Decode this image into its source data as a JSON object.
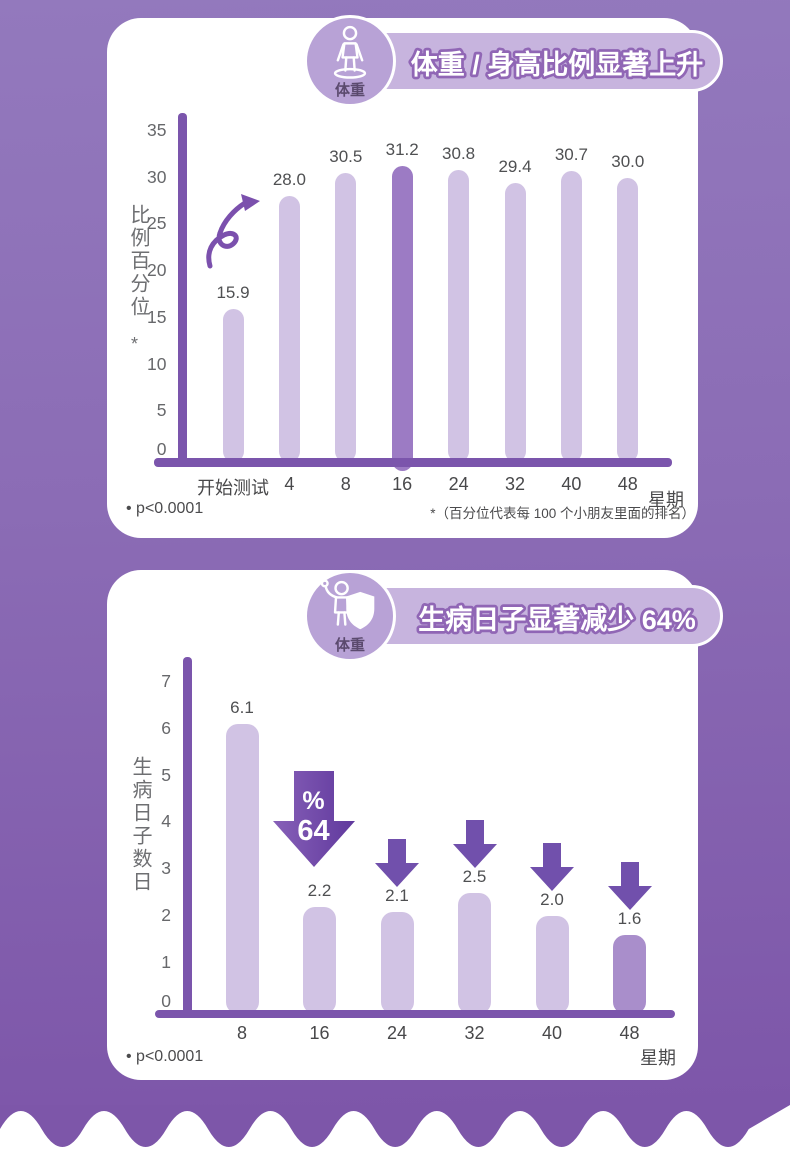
{
  "colors": {
    "background_top": "#9379bd",
    "background_bottom": "#7d56a9",
    "card": "#ffffff",
    "banner_pill": "#c7b4de",
    "badge_circle": "#b8a2d6",
    "axis": "#7b55ac",
    "arrow": "#6d44a4",
    "value_text": "#4f5052",
    "tick_text": "#67686b"
  },
  "s1": {
    "icon_label": "体重",
    "title": "体重 / 身高比例显著上升",
    "ylabel": "比例百分位",
    "ylabel_note": "*",
    "xunit": "星期",
    "footnote": "• p<0.0001",
    "footnote_right": "*（百分位代表每 100 个小朋友里面的排名）"
  },
  "s2": {
    "icon_label": "体重",
    "title": "生病日子显著减少 64%",
    "ylabel": "生病日子数日",
    "xunit": "星期",
    "footnote": "• p<0.0001"
  },
  "chart_data": [
    {
      "type": "bar",
      "title": "体重 / 身高比例显著上升",
      "categories": [
        "开始测试",
        "4",
        "8",
        "16",
        "24",
        "32",
        "40",
        "48"
      ],
      "values": [
        15.9,
        28.0,
        30.5,
        31.2,
        30.8,
        29.4,
        30.7,
        30.0
      ],
      "highlight_index": 3,
      "xlabel": "星期",
      "ylabel": "比例百分位 *",
      "ylim": [
        0,
        35
      ],
      "yticks": [
        0,
        5,
        10,
        15,
        20,
        25,
        30,
        35
      ],
      "grid": false,
      "legend": "none",
      "bar_color": "#d1c3e4",
      "highlight_color": "#9c7bc4",
      "annotation": "p<0.0001"
    },
    {
      "type": "bar",
      "title": "生病日子显著减少 64%",
      "categories": [
        "8",
        "16",
        "24",
        "32",
        "40",
        "48"
      ],
      "values": [
        6.1,
        2.2,
        2.1,
        2.5,
        2.0,
        1.6
      ],
      "highlight_index": 5,
      "xlabel": "星期",
      "ylabel": "生病日子数日",
      "ylim": [
        0,
        7
      ],
      "yticks": [
        0,
        1,
        2,
        3,
        4,
        5,
        6,
        7
      ],
      "grid": false,
      "legend": "none",
      "bar_color": "#d1c3e4",
      "highlight_color": "#a98ecb",
      "decrease_label": {
        "top": "%",
        "bottom": "64"
      },
      "arrows": [
        {
          "index": 1,
          "size": "large"
        },
        {
          "index": 2,
          "size": "small"
        },
        {
          "index": 3,
          "size": "small"
        },
        {
          "index": 4,
          "size": "small"
        },
        {
          "index": 5,
          "size": "small"
        }
      ],
      "annotation": "p<0.0001"
    }
  ]
}
